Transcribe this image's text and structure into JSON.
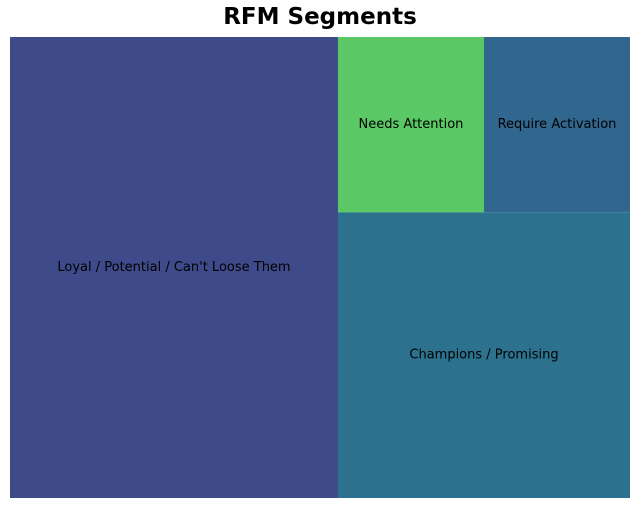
{
  "chart_data": {
    "type": "treemap",
    "title": "RFM Segments",
    "segments": [
      {
        "label": "Loyal / Potential / Can't Loose Them",
        "value": 52.9,
        "color": "#3e4a89"
      },
      {
        "label": "Champions / Promising",
        "value": 29.2,
        "color": "#2c728e"
      },
      {
        "label": "Needs Attention",
        "value": 8.95,
        "color": "#5ac864"
      },
      {
        "label": "Require Activation",
        "value": 8.95,
        "color": "#31668e"
      }
    ]
  }
}
